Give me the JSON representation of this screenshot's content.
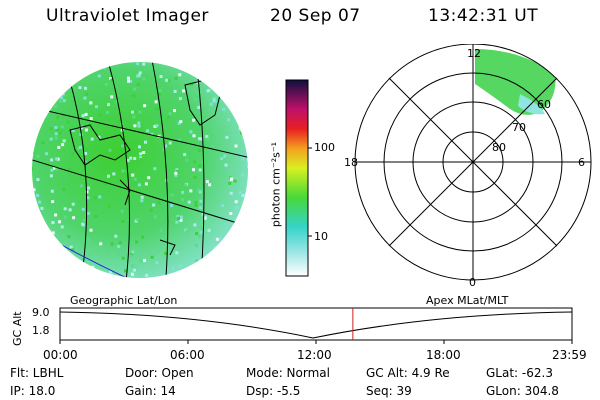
{
  "header": {
    "instrument": "Ultraviolet Imager",
    "date": "20 Sep 07",
    "time": "13:42:31 UT"
  },
  "colorbar": {
    "unit_label": "photon cm⁻²s⁻¹",
    "tick_labels": [
      "100",
      "10"
    ]
  },
  "polar_plot": {
    "mlt_labels": [
      "12",
      "18",
      "6",
      "0"
    ],
    "lat_labels": [
      "60",
      "70",
      "80"
    ]
  },
  "map_labels": {
    "left": "Geographic Lat/Lon",
    "right": "Apex MLat/MLT"
  },
  "altitude_plot": {
    "ylabel": "GC Alt",
    "y_ticks": [
      "9.0",
      "1.8"
    ],
    "x_ticks": [
      "00:00",
      "06:00",
      "12:00",
      "18:00",
      "23:59"
    ],
    "current_time_fraction": 0.572
  },
  "status": {
    "filter": "Flt: LBHL",
    "ip": "IP: 18.0",
    "door": "Door: Open",
    "gain": "Gain: 14",
    "mode": "Mode: Normal",
    "dsp": "Dsp:    -5.5",
    "gc_alt": "GC Alt: 4.9 Re",
    "seq": "Seq: 39",
    "glat": "GLat: -62.3",
    "glon": "GLon: 304.8"
  },
  "colors": {
    "emission_green": "#3ccf32",
    "emission_cyan": "#5fd9d0",
    "marker_red": "#cc2222"
  }
}
